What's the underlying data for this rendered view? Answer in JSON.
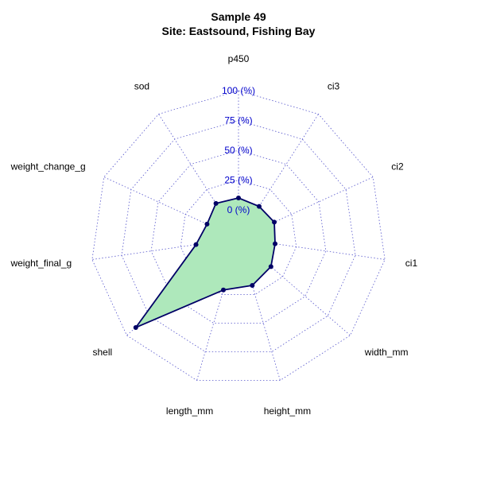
{
  "chart_data": {
    "type": "radar",
    "title": "Sample 49",
    "subtitle": "Site: Eastsound, Fishing Bay",
    "axes": [
      "p450",
      "ci3",
      "ci2",
      "ci1",
      "width_mm",
      "height_mm",
      "length_mm",
      "shell",
      "weight_final_g",
      "weight_change_g",
      "sod"
    ],
    "values": [
      10,
      8,
      9,
      7,
      12,
      17,
      21,
      90,
      12,
      5,
      11
    ],
    "rlim": [
      0,
      100
    ],
    "ticks": [
      0,
      25,
      50,
      75,
      100
    ],
    "tick_labels": [
      "0 (%)",
      "25 (%)",
      "50 (%)",
      "75 (%)",
      "100 (%)"
    ],
    "grid": "dotted",
    "colors": {
      "grid": "#5555cc",
      "tick_label": "#0000cc",
      "series_line": "#000066",
      "series_fill": "#aee8bb",
      "points": "#000066"
    }
  }
}
